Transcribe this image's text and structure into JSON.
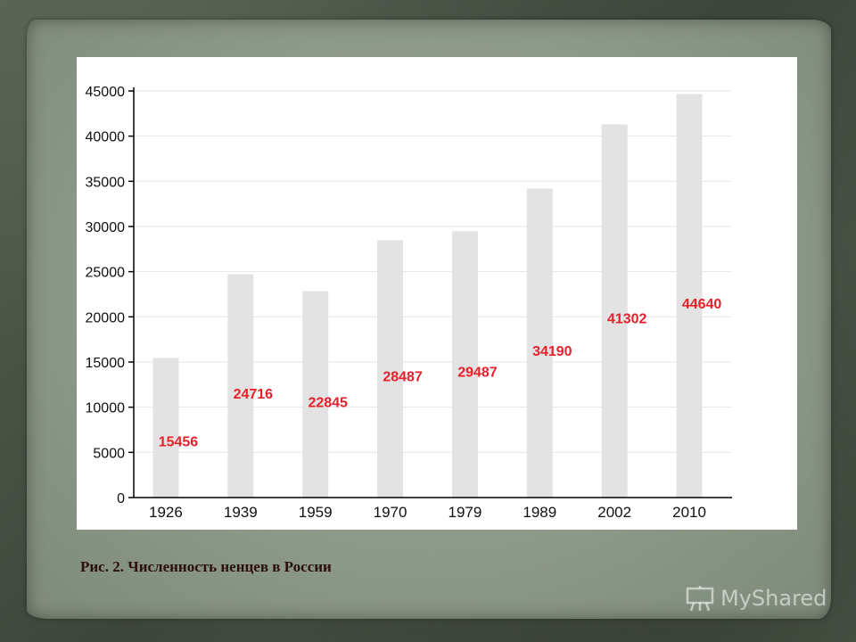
{
  "caption": "Рис. 2. Численность ненцев в России",
  "watermark": "MyShared",
  "colors": {
    "bar": "#e3e3e3",
    "label": "#e8202a",
    "axis": "#000000"
  },
  "chart_data": {
    "type": "bar",
    "title": "",
    "xlabel": "",
    "ylabel": "",
    "categories": [
      "1926",
      "1939",
      "1959",
      "1970",
      "1979",
      "1989",
      "2002",
      "2010"
    ],
    "values": [
      15456,
      24716,
      22845,
      28487,
      29487,
      34190,
      41302,
      44640
    ],
    "data_labels": [
      "15456",
      "24716",
      "22845",
      "28487",
      "29487",
      "34190",
      "41302",
      "44640"
    ],
    "yticks": [
      "0",
      "5000",
      "10000",
      "15000",
      "20000",
      "25000",
      "30000",
      "35000",
      "40000",
      "45000"
    ],
    "ylim": [
      0,
      45000
    ],
    "grid": true,
    "legend": "none"
  }
}
